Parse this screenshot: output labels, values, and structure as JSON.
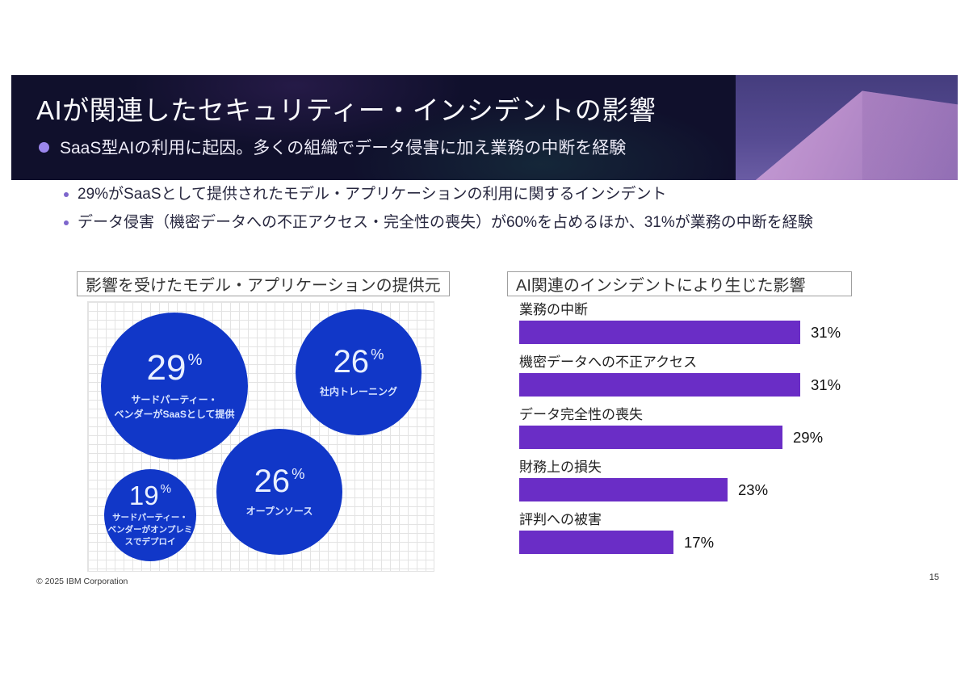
{
  "slide": {
    "title": "AIが関連したセキュリティー・インシデントの影響",
    "subtitle": "SaaS型AIの利用に起因。多くの組織でデータ侵害に加え業務の中断を経験",
    "bullets": [
      "29%がSaaSとして提供されたモデル・アプリケーションの利用に関するインシデント",
      "データ侵害（機密データへの不正アクセス・完全性の喪失）が60%を占めるほか、31%が業務の中断を経験"
    ],
    "footer": {
      "copyright": "© 2025 IBM Corporation",
      "page_number": "15"
    }
  },
  "colors": {
    "header_background": "#10102c",
    "header_art_purple": "#564b92",
    "header_pyramid_pink": "#c9a0d8",
    "accent_dot_purple": "#9b86ec",
    "bubble_blue": "#1137c8",
    "bar_purple": "#6a2dc6",
    "grid_line": "#e3e3e3"
  },
  "chart_data": [
    {
      "type": "scatter",
      "subtype": "bubble",
      "title": "影響を受けたモデル・アプリケーションの提供元",
      "unit": "%",
      "grid": true,
      "points": [
        {
          "value": 29,
          "label": "サードパーティー・ベンダーがSaaSとして提供",
          "label_lines": [
            "サードパーティー・",
            "ベンダーがSaaSとして提供"
          ]
        },
        {
          "value": 26,
          "label": "社内トレーニング",
          "label_lines": [
            "社内トレーニング"
          ]
        },
        {
          "value": 19,
          "label": "サードパーティー・ベンダーがオンプレミスでデプロイ",
          "label_lines": [
            "サードパーティー・",
            "ベンダーがオンプレミ",
            "スでデプロイ"
          ]
        },
        {
          "value": 26,
          "label": "オープンソース",
          "label_lines": [
            "オープンソース"
          ]
        }
      ]
    },
    {
      "type": "bar",
      "orientation": "horizontal",
      "title": "AI関連のインシデントにより生じた影響",
      "categories": [
        "業務の中断",
        "機密データへの不正アクセス",
        "データ完全性の喪失",
        "財務上の損失",
        "評判への被害"
      ],
      "values": [
        31,
        31,
        29,
        23,
        17
      ],
      "value_labels": [
        "31%",
        "31%",
        "29%",
        "23%",
        "17%"
      ],
      "xlim": [
        0,
        35
      ],
      "bar_color": "#6a2dc6",
      "legend": false
    }
  ]
}
